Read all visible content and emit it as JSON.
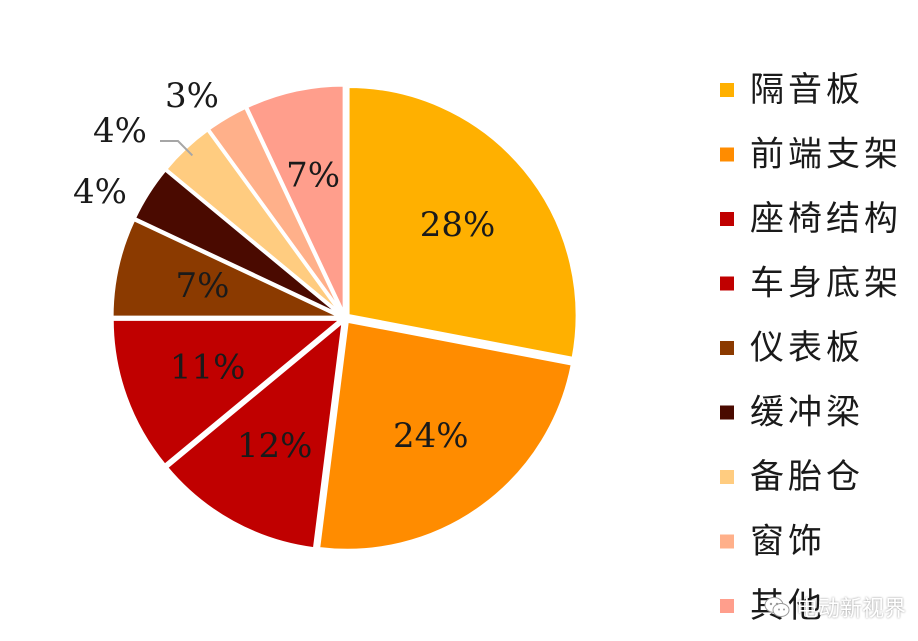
{
  "chart_data": {
    "type": "pie",
    "title": "",
    "slices": [
      {
        "label": "隔音板",
        "value": 28,
        "display": "28%",
        "color": "#FFB000"
      },
      {
        "label": "前端支架",
        "value": 24,
        "display": "24%",
        "color": "#FF8C00"
      },
      {
        "label": "座椅结构",
        "value": 12,
        "display": "12%",
        "color": "#C00000"
      },
      {
        "label": "车身底架",
        "value": 11,
        "display": "11%",
        "color": "#C00000"
      },
      {
        "label": "仪表板",
        "value": 7,
        "display": "7%",
        "color": "#8B3A00"
      },
      {
        "label": "缓冲梁",
        "value": 4,
        "display": "4%",
        "color": "#4A0A00"
      },
      {
        "label": "备胎仓",
        "value": 4,
        "display": "4%",
        "color": "#FFCC80"
      },
      {
        "label": "窗饰",
        "value": 3,
        "display": "3%",
        "color": "#FFB08A"
      },
      {
        "label": "其他",
        "value": 7,
        "display": "7%",
        "color": "#FF9E8C"
      }
    ],
    "legend_position": "right",
    "start_angle": "12 o'clock",
    "direction": "clockwise"
  },
  "watermark": {
    "text": "电动新视界",
    "icon": "wechat-icon"
  }
}
